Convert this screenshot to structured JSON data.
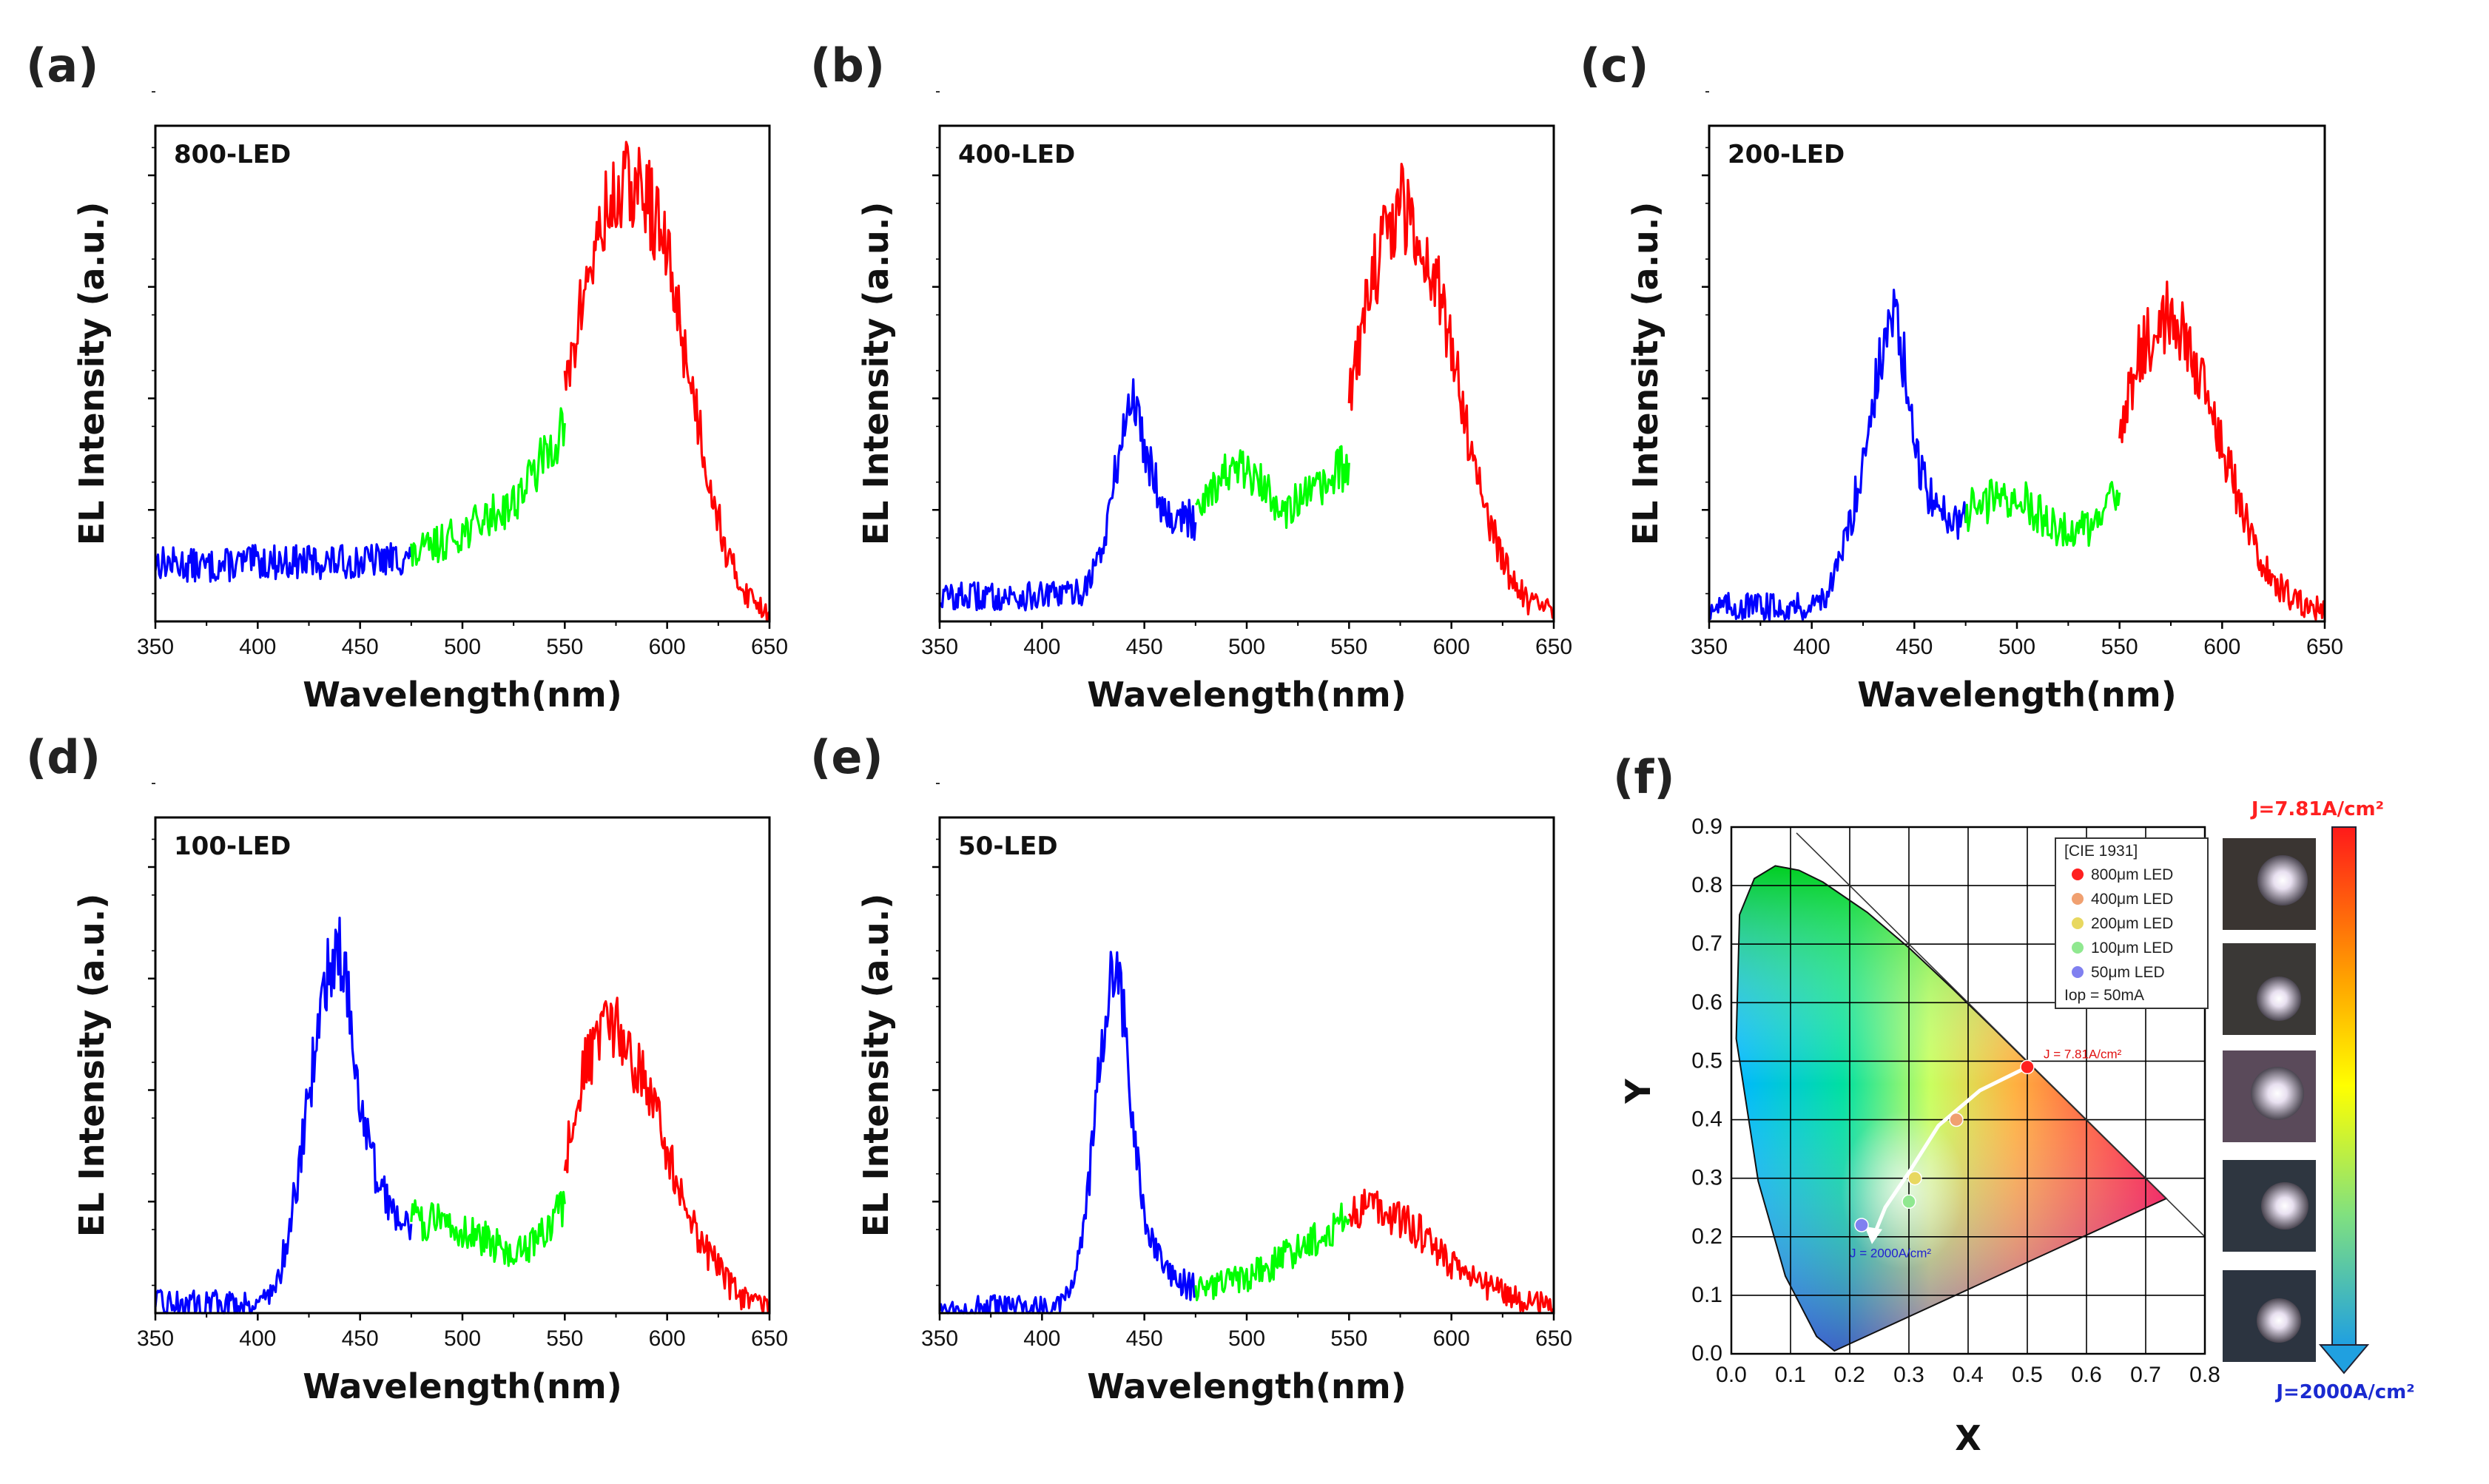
{
  "chart_data": [
    {
      "panel": "(a)",
      "title": "800-LED",
      "type": "line",
      "xlabel": "Wavelength(nm)",
      "ylabel": "EL Intensity (a.u.)",
      "xlim": [
        350,
        650
      ],
      "xticks": [
        350,
        400,
        450,
        500,
        550,
        600,
        650
      ],
      "ylim": [
        0,
        1
      ],
      "series": [
        {
          "name": "blue",
          "color": "#0000ff",
          "x": [
            350,
            375,
            400,
            425,
            450,
            475
          ],
          "y": [
            0.12,
            0.11,
            0.12,
            0.12,
            0.12,
            0.13
          ]
        },
        {
          "name": "green",
          "color": "#00ff00",
          "x": [
            475,
            500,
            525,
            540,
            550
          ],
          "y": [
            0.13,
            0.18,
            0.24,
            0.33,
            0.4
          ]
        },
        {
          "name": "red",
          "color": "#ff0000",
          "x": [
            550,
            560,
            570,
            580,
            590,
            600,
            610,
            620,
            630,
            640,
            650
          ],
          "y": [
            0.45,
            0.68,
            0.82,
            0.88,
            0.86,
            0.74,
            0.52,
            0.3,
            0.12,
            0.05,
            0.02
          ]
        }
      ]
    },
    {
      "panel": "(b)",
      "title": "400-LED",
      "type": "line",
      "xlabel": "Wavelength(nm)",
      "ylabel": "EL Intensity (a.u.)",
      "xlim": [
        350,
        650
      ],
      "xticks": [
        350,
        400,
        450,
        500,
        550,
        600,
        650
      ],
      "ylim": [
        0,
        1
      ],
      "series": [
        {
          "name": "blue",
          "color": "#0000ff",
          "x": [
            350,
            400,
            420,
            430,
            438,
            444,
            450,
            460,
            475
          ],
          "y": [
            0.05,
            0.05,
            0.06,
            0.15,
            0.35,
            0.46,
            0.36,
            0.22,
            0.2
          ]
        },
        {
          "name": "green",
          "color": "#00ff00",
          "x": [
            475,
            490,
            500,
            510,
            520,
            530,
            540,
            550
          ],
          "y": [
            0.24,
            0.3,
            0.3,
            0.26,
            0.23,
            0.25,
            0.28,
            0.32
          ]
        },
        {
          "name": "red",
          "color": "#ff0000",
          "x": [
            550,
            560,
            570,
            575,
            580,
            590,
            600,
            610,
            620,
            630,
            640,
            650
          ],
          "y": [
            0.44,
            0.68,
            0.8,
            0.84,
            0.81,
            0.72,
            0.56,
            0.34,
            0.18,
            0.08,
            0.03,
            0.02
          ]
        }
      ]
    },
    {
      "panel": "(c)",
      "title": "200-LED",
      "type": "line",
      "xlabel": "Wavelength(nm)",
      "ylabel": "EL Intensity (a.u.)",
      "xlim": [
        350,
        650
      ],
      "xticks": [
        350,
        400,
        450,
        500,
        550,
        600,
        650
      ],
      "ylim": [
        0,
        1
      ],
      "series": [
        {
          "name": "blue",
          "color": "#0000ff",
          "x": [
            350,
            400,
            410,
            420,
            430,
            436,
            440,
            445,
            450,
            460,
            475
          ],
          "y": [
            0.03,
            0.03,
            0.07,
            0.22,
            0.45,
            0.57,
            0.62,
            0.52,
            0.34,
            0.23,
            0.2
          ]
        },
        {
          "name": "green",
          "color": "#00ff00",
          "x": [
            475,
            490,
            500,
            510,
            520,
            530,
            540,
            550
          ],
          "y": [
            0.22,
            0.25,
            0.25,
            0.22,
            0.19,
            0.18,
            0.2,
            0.26
          ]
        },
        {
          "name": "red",
          "color": "#ff0000",
          "x": [
            550,
            560,
            570,
            575,
            580,
            590,
            600,
            610,
            620,
            630,
            640,
            650
          ],
          "y": [
            0.4,
            0.54,
            0.6,
            0.62,
            0.58,
            0.5,
            0.36,
            0.22,
            0.12,
            0.06,
            0.03,
            0.02
          ]
        }
      ]
    },
    {
      "panel": "(d)",
      "title": "100-LED",
      "type": "line",
      "xlabel": "Wavelength(nm)",
      "ylabel": "EL Intensity (a.u.)",
      "xlim": [
        350,
        650
      ],
      "xticks": [
        350,
        400,
        450,
        500,
        550,
        600,
        650
      ],
      "ylim": [
        0,
        1
      ],
      "series": [
        {
          "name": "blue",
          "color": "#0000ff",
          "x": [
            350,
            400,
            410,
            420,
            430,
            436,
            440,
            445,
            450,
            460,
            475
          ],
          "y": [
            0.02,
            0.02,
            0.06,
            0.28,
            0.6,
            0.72,
            0.74,
            0.62,
            0.42,
            0.24,
            0.18
          ]
        },
        {
          "name": "green",
          "color": "#00ff00",
          "x": [
            475,
            490,
            500,
            510,
            520,
            530,
            540,
            550
          ],
          "y": [
            0.19,
            0.18,
            0.17,
            0.15,
            0.13,
            0.12,
            0.16,
            0.22
          ]
        },
        {
          "name": "red",
          "color": "#ff0000",
          "x": [
            550,
            560,
            570,
            575,
            580,
            590,
            600,
            610,
            620,
            630,
            640,
            650
          ],
          "y": [
            0.3,
            0.5,
            0.56,
            0.57,
            0.54,
            0.46,
            0.32,
            0.2,
            0.12,
            0.06,
            0.02,
            0.01
          ]
        }
      ]
    },
    {
      "panel": "(e)",
      "title": "50-LED",
      "type": "line",
      "xlabel": "Wavelength(nm)",
      "ylabel": "EL Intensity (a.u.)",
      "xlim": [
        350,
        650
      ],
      "xticks": [
        350,
        400,
        450,
        500,
        550,
        600,
        650
      ],
      "ylim": [
        0,
        1
      ],
      "series": [
        {
          "name": "blue",
          "color": "#0000ff",
          "x": [
            350,
            405,
            415,
            422,
            428,
            433,
            436,
            440,
            445,
            450,
            460,
            475
          ],
          "y": [
            0.01,
            0.01,
            0.06,
            0.22,
            0.5,
            0.66,
            0.7,
            0.6,
            0.36,
            0.18,
            0.08,
            0.05
          ]
        },
        {
          "name": "green",
          "color": "#00ff00",
          "x": [
            475,
            490,
            500,
            510,
            520,
            530,
            540,
            550
          ],
          "y": [
            0.05,
            0.06,
            0.07,
            0.09,
            0.12,
            0.14,
            0.17,
            0.19
          ]
        },
        {
          "name": "red",
          "color": "#ff0000",
          "x": [
            550,
            560,
            565,
            570,
            580,
            590,
            600,
            610,
            620,
            630,
            640,
            650
          ],
          "y": [
            0.2,
            0.22,
            0.22,
            0.2,
            0.18,
            0.14,
            0.1,
            0.07,
            0.05,
            0.03,
            0.02,
            0.01
          ]
        }
      ]
    },
    {
      "panel": "(f)",
      "type": "scatter",
      "xlabel": "X",
      "ylabel": "Y",
      "xlim": [
        0.0,
        0.8
      ],
      "ylim": [
        0.0,
        0.9
      ],
      "xticks": [
        "0.0",
        "0.1",
        "0.2",
        "0.3",
        "0.4",
        "0.5",
        "0.6",
        "0.7",
        "0.8"
      ],
      "yticks": [
        "0.0",
        "0.1",
        "0.2",
        "0.3",
        "0.4",
        "0.5",
        "0.6",
        "0.7",
        "0.8",
        "0.9"
      ],
      "legend": {
        "title": "[CIE 1931]",
        "entries": [
          {
            "label": "800μm LED",
            "color": "#ff2020",
            "x": 0.5,
            "y": 0.49
          },
          {
            "label": "400μm LED",
            "color": "#f0a070",
            "x": 0.38,
            "y": 0.4
          },
          {
            "label": "200μm LED",
            "color": "#e8d860",
            "x": 0.31,
            "y": 0.3
          },
          {
            "label": "100μm LED",
            "color": "#90e890",
            "x": 0.3,
            "y": 0.26
          },
          {
            "label": "50μm LED",
            "color": "#8080f0",
            "x": 0.22,
            "y": 0.22
          }
        ],
        "note": "Iop = 50mA"
      },
      "annotations": {
        "top": "J = 7.81A/cm²",
        "bottom": "J = 2000A/cm²"
      },
      "gradient_bar": {
        "top_label": "J=7.81A/cm²",
        "bottom_label": "J=2000A/cm²"
      }
    }
  ]
}
